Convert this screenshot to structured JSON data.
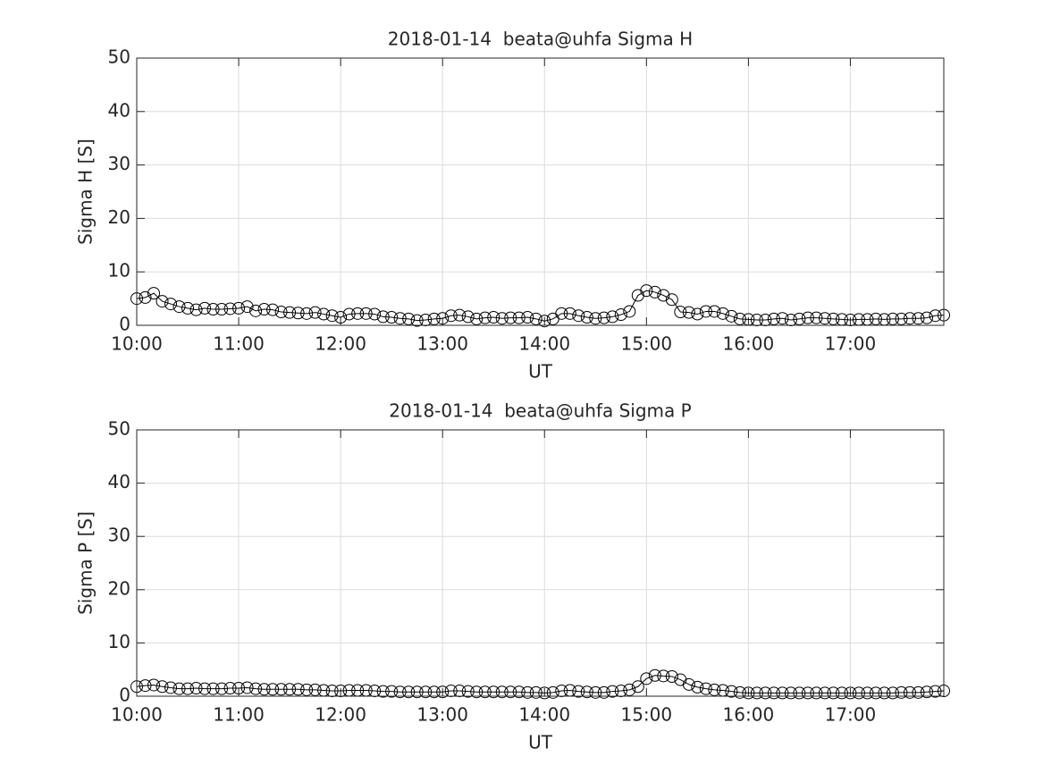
{
  "chart_data": [
    {
      "type": "line",
      "title": "2018-01-14  beata@uhfa Sigma H",
      "xlabel": "UT",
      "ylabel": "Sigma H [S]",
      "x": [
        "10:00",
        "10:05",
        "10:10",
        "10:15",
        "10:20",
        "10:25",
        "10:30",
        "10:35",
        "10:40",
        "10:45",
        "10:50",
        "10:55",
        "11:00",
        "11:05",
        "11:10",
        "11:15",
        "11:20",
        "11:25",
        "11:30",
        "11:35",
        "11:40",
        "11:45",
        "11:50",
        "11:55",
        "12:00",
        "12:05",
        "12:10",
        "12:15",
        "12:20",
        "12:25",
        "12:30",
        "12:35",
        "12:40",
        "12:45",
        "12:50",
        "12:55",
        "13:00",
        "13:05",
        "13:10",
        "13:15",
        "13:20",
        "13:25",
        "13:30",
        "13:35",
        "13:40",
        "13:45",
        "13:50",
        "13:55",
        "14:00",
        "14:05",
        "14:10",
        "14:15",
        "14:20",
        "14:25",
        "14:30",
        "14:35",
        "14:40",
        "14:45",
        "14:50",
        "14:55",
        "15:00",
        "15:05",
        "15:10",
        "15:15",
        "15:20",
        "15:25",
        "15:30",
        "15:35",
        "15:40",
        "15:45",
        "15:50",
        "15:55",
        "16:00",
        "16:05",
        "16:10",
        "16:15",
        "16:20",
        "16:25",
        "16:30",
        "16:35",
        "16:40",
        "16:45",
        "16:50",
        "16:55",
        "17:00",
        "17:05",
        "17:10",
        "17:15",
        "17:20",
        "17:25",
        "17:30",
        "17:35",
        "17:40",
        "17:45",
        "17:50",
        "17:55"
      ],
      "series": [
        {
          "color": "#000000",
          "values": [
            5,
            5.2,
            6,
            4.5,
            4,
            3.5,
            3.2,
            2.9,
            3.2,
            3,
            3,
            3.1,
            3.2,
            3.5,
            2.7,
            3,
            2.9,
            2.5,
            2.4,
            2.3,
            2.2,
            2.4,
            2.1,
            1.8,
            1.5,
            2.1,
            2.2,
            2.2,
            2.1,
            1.6,
            1.5,
            1.3,
            1.2,
            0.9,
            1,
            1.2,
            1.3,
            1.8,
            1.9,
            1.6,
            1.2,
            1.4,
            1.5,
            1.3,
            1.4,
            1.4,
            1.5,
            1.2,
            0.8,
            1.2,
            2.2,
            2.2,
            1.8,
            1.5,
            1.3,
            1.4,
            1.6,
            2,
            2.6,
            5.6,
            6.5,
            6.2,
            5.6,
            4.8,
            2.5,
            2.4,
            2.1,
            2.6,
            2.6,
            2.2,
            1.7,
            1.2,
            1.1,
            1,
            1,
            1.2,
            1.3,
            1,
            1.2,
            1.4,
            1.4,
            1.3,
            1.2,
            1.1,
            1,
            1.1,
            1.1,
            1.2,
            1.1,
            1.2,
            1.2,
            1.3,
            1.3,
            1.4,
            1.8,
            1.9
          ]
        }
      ],
      "xlim": [
        "10:00",
        "17:55"
      ],
      "xticks": [
        "10:00",
        "11:00",
        "12:00",
        "13:00",
        "14:00",
        "15:00",
        "16:00",
        "17:00"
      ],
      "ylim": [
        0,
        50
      ],
      "yticks": [
        0,
        10,
        20,
        30,
        40,
        50
      ],
      "grid": true,
      "marker": "circle"
    },
    {
      "type": "line",
      "title": "2018-01-14  beata@uhfa Sigma P",
      "xlabel": "UT",
      "ylabel": "Sigma P [S]",
      "x": [
        "10:00",
        "10:05",
        "10:10",
        "10:15",
        "10:20",
        "10:25",
        "10:30",
        "10:35",
        "10:40",
        "10:45",
        "10:50",
        "10:55",
        "11:00",
        "11:05",
        "11:10",
        "11:15",
        "11:20",
        "11:25",
        "11:30",
        "11:35",
        "11:40",
        "11:45",
        "11:50",
        "11:55",
        "12:00",
        "12:05",
        "12:10",
        "12:15",
        "12:20",
        "12:25",
        "12:30",
        "12:35",
        "12:40",
        "12:45",
        "12:50",
        "12:55",
        "13:00",
        "13:05",
        "13:10",
        "13:15",
        "13:20",
        "13:25",
        "13:30",
        "13:35",
        "13:40",
        "13:45",
        "13:50",
        "13:55",
        "14:00",
        "14:05",
        "14:10",
        "14:15",
        "14:20",
        "14:25",
        "14:30",
        "14:35",
        "14:40",
        "14:45",
        "14:50",
        "14:55",
        "15:00",
        "15:05",
        "15:10",
        "15:15",
        "15:20",
        "15:25",
        "15:30",
        "15:35",
        "15:40",
        "15:45",
        "15:50",
        "15:55",
        "16:00",
        "16:05",
        "16:10",
        "16:15",
        "16:20",
        "16:25",
        "16:30",
        "16:35",
        "16:40",
        "16:45",
        "16:50",
        "16:55",
        "17:00",
        "17:05",
        "17:10",
        "17:15",
        "17:20",
        "17:25",
        "17:30",
        "17:35",
        "17:40",
        "17:45",
        "17:50",
        "17:55"
      ],
      "series": [
        {
          "color": "#000000",
          "values": [
            1.8,
            2,
            2.1,
            1.8,
            1.6,
            1.4,
            1.4,
            1.5,
            1.4,
            1.4,
            1.4,
            1.5,
            1.5,
            1.6,
            1.4,
            1.3,
            1.3,
            1.3,
            1.3,
            1.3,
            1.2,
            1.2,
            1.1,
            1,
            1,
            1.1,
            1.1,
            1.1,
            1,
            0.9,
            0.9,
            0.8,
            0.8,
            0.8,
            0.8,
            0.8,
            0.8,
            1,
            1,
            0.9,
            0.8,
            0.8,
            0.8,
            0.8,
            0.8,
            0.8,
            0.7,
            0.7,
            0.6,
            0.7,
            1,
            1.1,
            0.9,
            0.8,
            0.7,
            0.7,
            0.9,
            1,
            1.2,
            1.8,
            3.3,
            3.9,
            3.8,
            3.7,
            3.1,
            2.2,
            1.7,
            1.4,
            1.2,
            1.1,
            0.9,
            0.7,
            0.6,
            0.6,
            0.6,
            0.6,
            0.6,
            0.6,
            0.6,
            0.6,
            0.6,
            0.6,
            0.6,
            0.6,
            0.6,
            0.6,
            0.6,
            0.6,
            0.6,
            0.6,
            0.7,
            0.7,
            0.7,
            0.8,
            0.9,
            1
          ]
        }
      ],
      "xlim": [
        "10:00",
        "17:55"
      ],
      "xticks": [
        "10:00",
        "11:00",
        "12:00",
        "13:00",
        "14:00",
        "15:00",
        "16:00",
        "17:00"
      ],
      "ylim": [
        0,
        50
      ],
      "yticks": [
        0,
        10,
        20,
        30,
        40,
        50
      ],
      "grid": true,
      "marker": "circle"
    }
  ]
}
